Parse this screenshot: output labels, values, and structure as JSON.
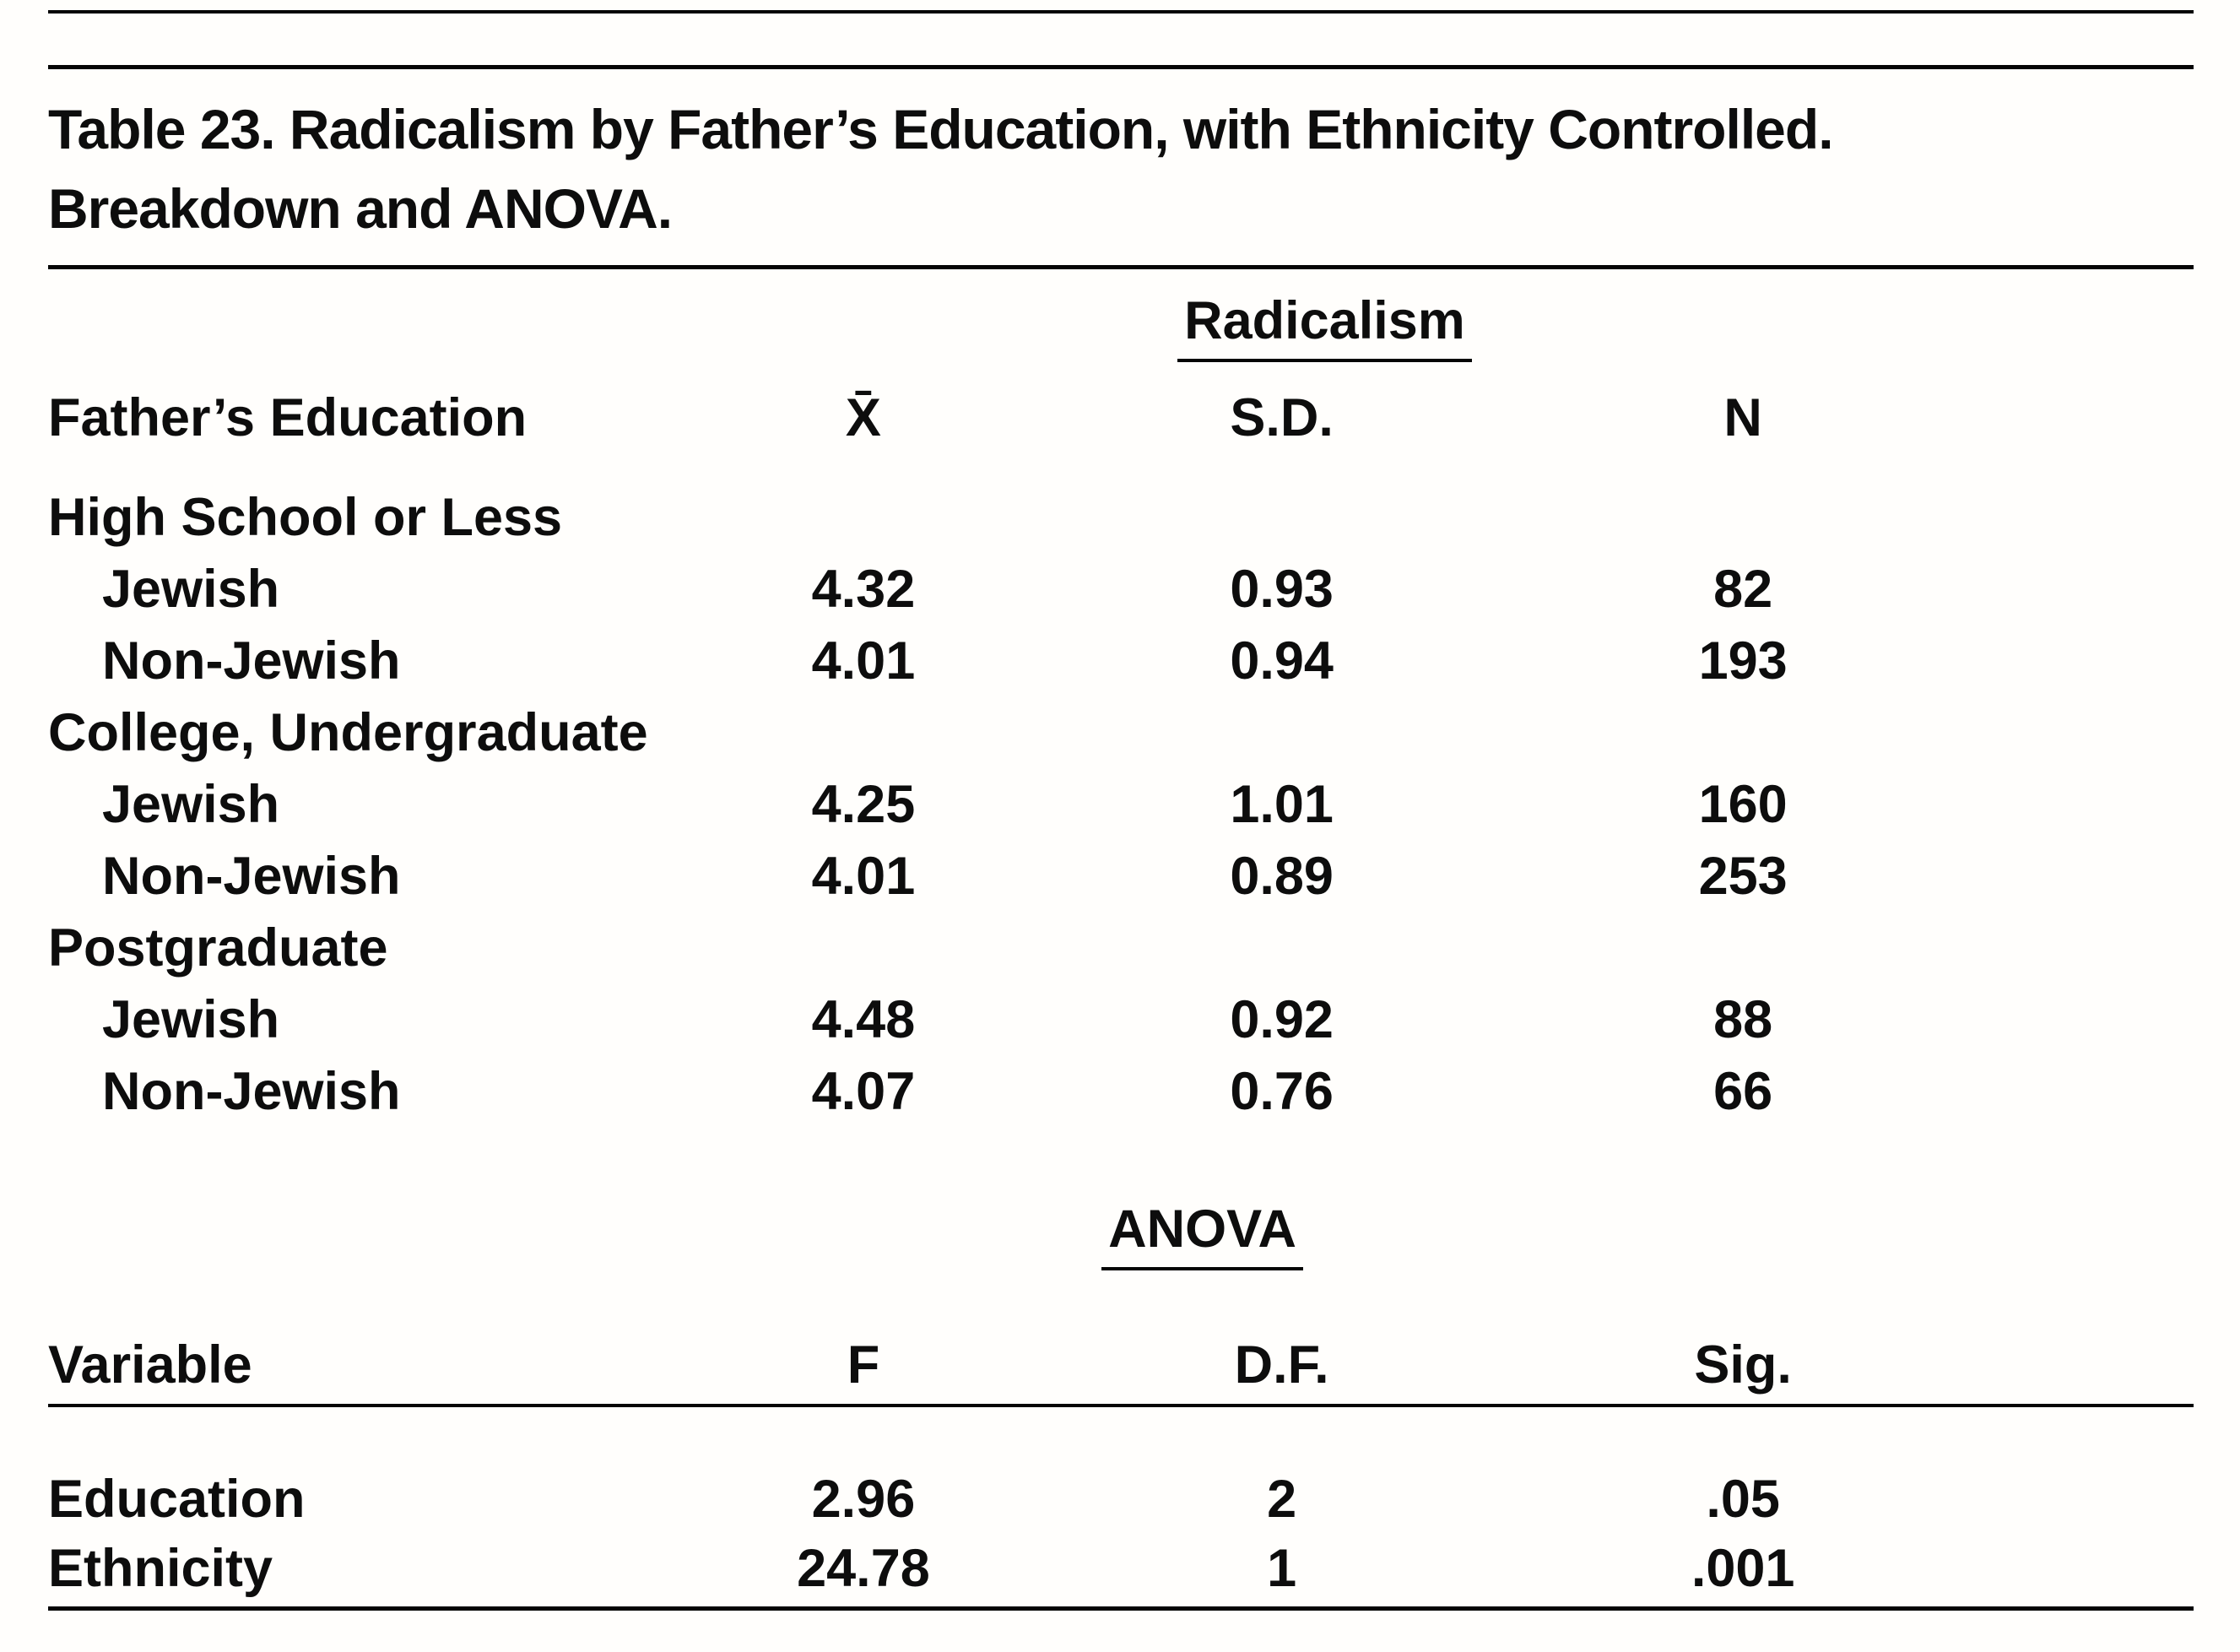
{
  "colors": {
    "ink": "#0d0d0d",
    "paper": "#fffefc"
  },
  "title": {
    "label": "Table 23.",
    "text": "Radicalism by Father’s Education, with Ethnicity Controlled.",
    "subtitle": "Breakdown and ANOVA."
  },
  "breakdown": {
    "panel_label": "Radicalism",
    "col_headers": {
      "variable": "Father’s Education",
      "mean": "X̄",
      "sd": "S.D.",
      "n": "N"
    },
    "rows": [
      {
        "label": "High School or Less",
        "mean": "",
        "sd": "",
        "n": ""
      },
      {
        "label": "Jewish",
        "mean": "4.32",
        "sd": "0.93",
        "n": "82"
      },
      {
        "label": "Non-Jewish",
        "mean": "4.01",
        "sd": "0.94",
        "n": "193"
      },
      {
        "label": "College, Undergraduate",
        "mean": "",
        "sd": "",
        "n": ""
      },
      {
        "label": "Jewish",
        "mean": "4.25",
        "sd": "1.01",
        "n": "160"
      },
      {
        "label": "Non-Jewish",
        "mean": "4.01",
        "sd": "0.89",
        "n": "253"
      },
      {
        "label": "Postgraduate",
        "mean": "",
        "sd": "",
        "n": ""
      },
      {
        "label": "Jewish",
        "mean": "4.48",
        "sd": "0.92",
        "n": "88"
      },
      {
        "label": "Non-Jewish",
        "mean": "4.07",
        "sd": "0.76",
        "n": "66"
      }
    ]
  },
  "anova": {
    "heading": "ANOVA",
    "col_headers": {
      "variable": "Variable",
      "f": "F",
      "df": "D.F.",
      "sig": "Sig."
    },
    "rows": [
      {
        "variable": "Education",
        "f": "2.96",
        "df": "2",
        "sig": ".05"
      },
      {
        "variable": "Ethnicity",
        "f": "24.78",
        "df": "1",
        "sig": ".001"
      }
    ]
  }
}
